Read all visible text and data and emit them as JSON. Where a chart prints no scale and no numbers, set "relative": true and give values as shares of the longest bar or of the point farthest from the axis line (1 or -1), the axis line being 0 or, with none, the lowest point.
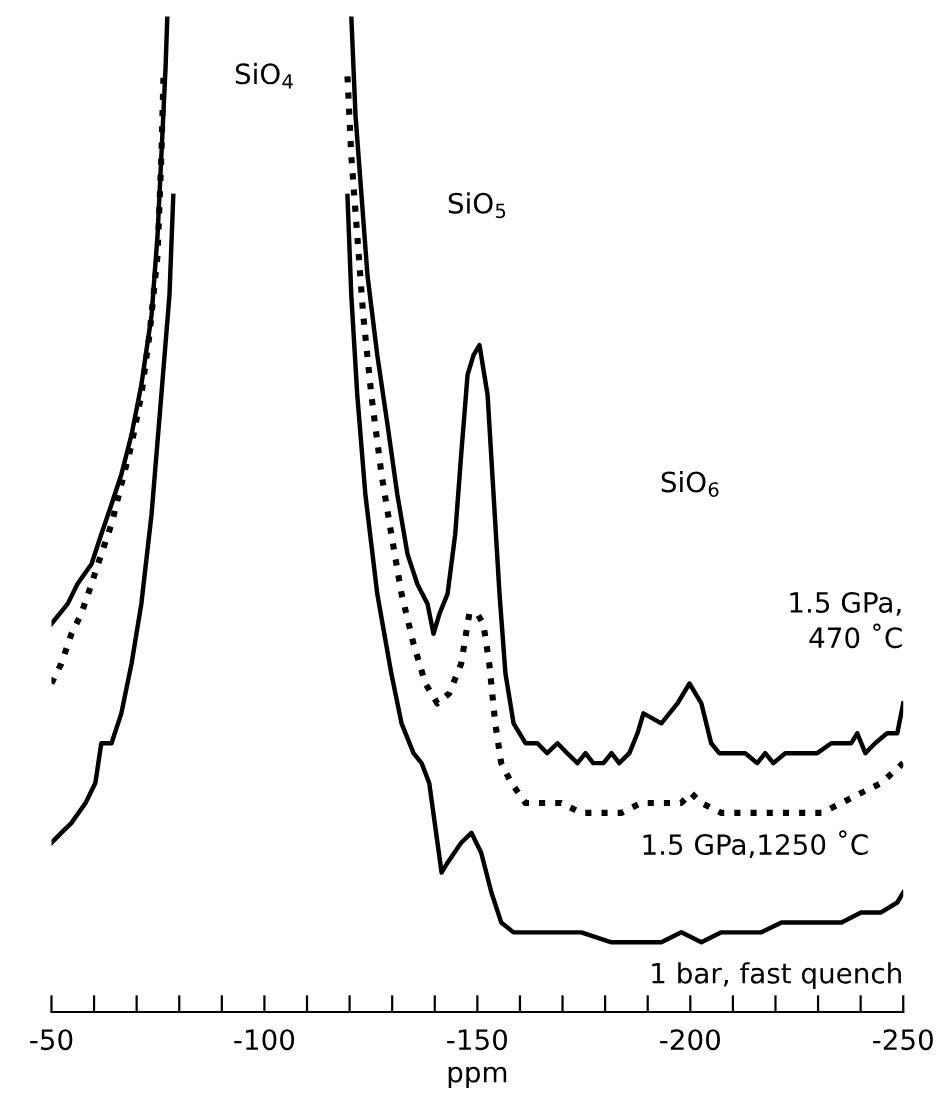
{
  "chart_data": {
    "type": "line",
    "relative": true,
    "xlabel": "ppm",
    "xlim": [
      -50,
      -250
    ],
    "xticks": [
      -50,
      {
        "value": -60,
        "label": null
      },
      {
        "value": -70,
        "label": null
      },
      {
        "value": -80,
        "label": null
      },
      {
        "value": -90,
        "label": null
      },
      -100,
      {
        "value": -110,
        "label": null
      },
      {
        "value": -120,
        "label": null
      },
      {
        "value": -130,
        "label": null
      },
      {
        "value": -140,
        "label": null
      },
      -150,
      {
        "value": -160,
        "label": null
      },
      {
        "value": -170,
        "label": null
      },
      {
        "value": -180,
        "label": null
      },
      {
        "value": -190,
        "label": null
      },
      -200,
      {
        "value": -210,
        "label": null
      },
      {
        "value": -220,
        "label": null
      },
      {
        "value": -230,
        "label": null
      },
      {
        "value": -240,
        "label": null
      },
      -250
    ],
    "tick_labels": "x",
    "grid": false,
    "legend": false,
    "marker": "none",
    "annotations": [
      "SiO$_{4}$",
      "SiO$_{5}$",
      "SiO$_{6}$"
    ],
    "series": [
      {
        "name": "1.5 GPa,\n470 ˚C",
        "color": "#000000",
        "line_style": "solid",
        "x": [
          -50,
          -53.8,
          -56.1,
          -59.4,
          -61.7,
          -64.1,
          -66.4,
          -68.8,
          -71.1,
          -73.5,
          -74.9,
          -75.8,
          -76.8,
          -77.2,
          -100,
          -120.4,
          -121.4,
          -122.8,
          -124.2,
          -126.5,
          -128.9,
          -131.2,
          -133.6,
          -135.9,
          -138.3,
          -139.7,
          -141.1,
          -143.0,
          -144.8,
          -146.2,
          -147.7,
          -149.1,
          -150.5,
          -152.4,
          -153.8,
          -155.2,
          -156.6,
          -158.5,
          -161.3,
          -164.1,
          -166.4,
          -168.8,
          -171.1,
          -173.5,
          -175.4,
          -177.2,
          -179.6,
          -181.5,
          -183.3,
          -185.7,
          -187.6,
          -189.0,
          -193.2,
          -197.0,
          -199.8,
          -202.6,
          -204.9,
          -206.8,
          -210.1,
          -212.9,
          -215.7,
          -217.6,
          -219.5,
          -222.3,
          -226.1,
          -229.8,
          -233.1,
          -237.8,
          -239.2,
          -241.1,
          -243.4,
          -246.2,
          -248.6,
          -250.0
        ],
        "values": [
          0.39,
          0.41,
          0.43,
          0.45,
          0.48,
          0.51,
          0.54,
          0.58,
          0.63,
          0.7,
          0.78,
          0.86,
          0.95,
          1.0,
          null,
          1.0,
          0.9,
          0.82,
          0.74,
          0.66,
          0.59,
          0.52,
          0.46,
          0.43,
          0.41,
          0.38,
          0.4,
          0.42,
          0.48,
          0.56,
          0.64,
          0.66,
          0.67,
          0.62,
          0.52,
          0.42,
          0.34,
          0.29,
          0.27,
          0.27,
          0.26,
          0.27,
          0.26,
          0.25,
          0.26,
          0.25,
          0.25,
          0.26,
          0.25,
          0.26,
          0.28,
          0.3,
          0.29,
          0.31,
          0.33,
          0.31,
          0.27,
          0.26,
          0.26,
          0.26,
          0.25,
          0.26,
          0.25,
          0.26,
          0.26,
          0.26,
          0.27,
          0.27,
          0.28,
          0.26,
          0.27,
          0.28,
          0.28,
          0.31
        ]
      },
      {
        "name": "1.5 GPa,1250 ˚C",
        "color": "#000000",
        "line_style": "dotted",
        "x": [
          -50,
          -52.3,
          -54.7,
          -57.0,
          -59.4,
          -61.7,
          -64.1,
          -66.4,
          -68.8,
          -71.1,
          -73.0,
          -74.9,
          -75.8,
          -76.3,
          -100,
          -119.5,
          -120.4,
          -121.8,
          -123.2,
          -125.1,
          -127.5,
          -129.8,
          -132.2,
          -135.0,
          -137.8,
          -140.6,
          -143.4,
          -146.2,
          -148.1,
          -150.0,
          -151.4,
          -152.8,
          -154.2,
          -155.6,
          -158.0,
          -161.3,
          -165.0,
          -169.7,
          -174.4,
          -179.1,
          -183.8,
          -188.5,
          -193.2,
          -197.9,
          -200.2,
          -202.6,
          -207.3,
          -212.0,
          -216.7,
          -221.4,
          -226.1,
          -230.8,
          -235.5,
          -240.1,
          -244.8,
          -250.0
        ],
        "values": [
          0.33,
          0.35,
          0.38,
          0.4,
          0.43,
          0.46,
          0.49,
          0.53,
          0.57,
          0.62,
          0.68,
          0.76,
          0.86,
          0.94,
          null,
          0.94,
          0.86,
          0.78,
          0.7,
          0.62,
          0.54,
          0.48,
          0.42,
          0.37,
          0.33,
          0.31,
          0.32,
          0.35,
          0.4,
          0.4,
          0.39,
          0.35,
          0.29,
          0.25,
          0.23,
          0.21,
          0.21,
          0.21,
          0.2,
          0.2,
          0.2,
          0.21,
          0.21,
          0.21,
          0.22,
          0.21,
          0.2,
          0.2,
          0.2,
          0.2,
          0.2,
          0.2,
          0.21,
          0.22,
          0.23,
          0.25
        ]
      },
      {
        "name": "1 bar, fast quench",
        "color": "#000000",
        "line_style": "solid",
        "x": [
          -50,
          -52.3,
          -54.7,
          -58.0,
          -60.3,
          -61.7,
          -64.1,
          -66.4,
          -68.8,
          -71.1,
          -73.5,
          -75.8,
          -77.7,
          -78.6,
          -100,
          -119.5,
          -120.4,
          -121.8,
          -123.7,
          -126.5,
          -129.8,
          -132.2,
          -135.0,
          -136.9,
          -138.7,
          -141.6,
          -143.0,
          -146.2,
          -148.6,
          -150.9,
          -153.3,
          -155.6,
          -158.5,
          -162.7,
          -167.4,
          -174.4,
          -181.5,
          -188.5,
          -193.2,
          -197.9,
          -202.6,
          -207.3,
          -212.0,
          -216.7,
          -221.4,
          -226.1,
          -230.8,
          -235.5,
          -240.1,
          -244.8,
          -248.6,
          -250.0
        ],
        "values": [
          0.17,
          0.18,
          0.19,
          0.21,
          0.23,
          0.27,
          0.27,
          0.3,
          0.35,
          0.41,
          0.5,
          0.62,
          0.72,
          0.82,
          null,
          0.82,
          0.72,
          0.62,
          0.52,
          0.42,
          0.34,
          0.29,
          0.26,
          0.25,
          0.23,
          0.14,
          0.15,
          0.17,
          0.18,
          0.16,
          0.12,
          0.09,
          0.08,
          0.08,
          0.08,
          0.08,
          0.07,
          0.07,
          0.07,
          0.08,
          0.07,
          0.08,
          0.08,
          0.08,
          0.09,
          0.09,
          0.09,
          0.09,
          0.1,
          0.1,
          0.11,
          0.12
        ]
      }
    ]
  }
}
